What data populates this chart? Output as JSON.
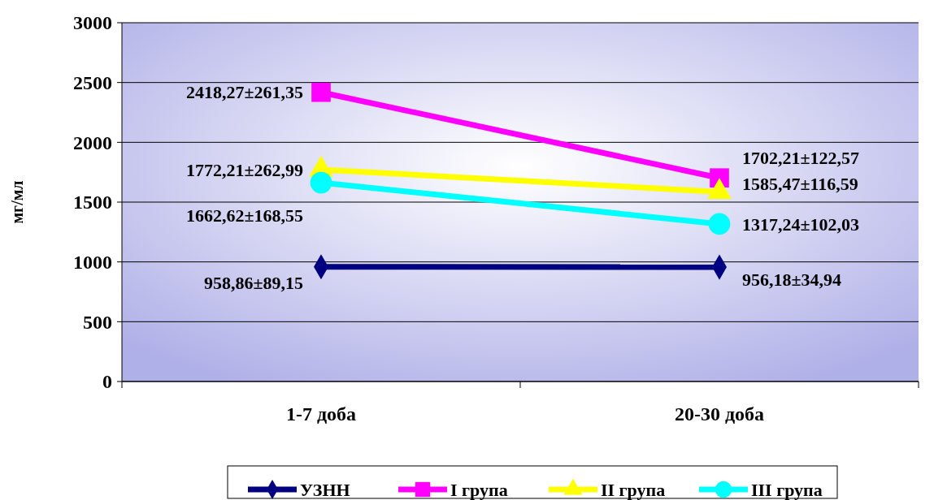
{
  "chart_data": {
    "type": "line",
    "ylabel": "мг/мл",
    "categories": [
      "1-7 доба",
      "20-30 доба"
    ],
    "ylim": [
      0,
      3000
    ],
    "yticks": [
      0,
      500,
      1000,
      1500,
      2000,
      2500,
      3000
    ],
    "grid": "y",
    "legend": "bottom",
    "series": [
      {
        "name": "УЗНН",
        "color": "#000080",
        "marker": "diamond",
        "values": [
          958.86,
          956.18
        ],
        "value_labels": [
          "958,86±89,15",
          "956,18±34,94"
        ]
      },
      {
        "name": "I група",
        "color": "#ff00ff",
        "marker": "square",
        "values": [
          2418.27,
          1702.21
        ],
        "value_labels": [
          "2418,27±261,35",
          "1702,21±122,57"
        ]
      },
      {
        "name": "II група",
        "color": "#ffff00",
        "marker": "triangle",
        "values": [
          1772.21,
          1585.47
        ],
        "value_labels": [
          "1772,21±262,99",
          "1585,47±116,59"
        ]
      },
      {
        "name": "III група",
        "color": "#00ffff",
        "marker": "circle",
        "values": [
          1662.62,
          1317.24
        ],
        "value_labels": [
          "1662,62±168,55",
          "1317,24±102,03"
        ]
      }
    ]
  }
}
